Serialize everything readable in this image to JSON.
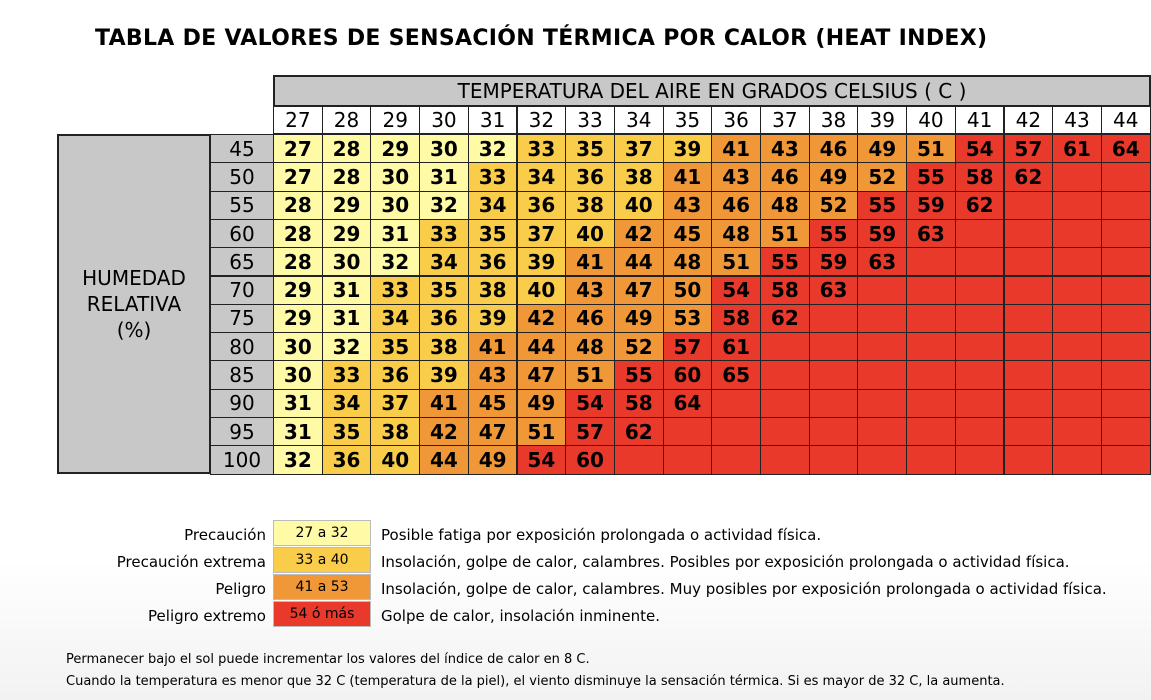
{
  "chart_data": {
    "type": "heatmap",
    "title": "TABLA DE VALORES DE SENSACIÓN TÉRMICA POR CALOR (HEAT INDEX)",
    "xlabel": "TEMPERATURA DEL AIRE EN GRADOS CELSIUS ( C )",
    "ylabel": [
      "HUMEDAD",
      "RELATIVA",
      "(%)"
    ],
    "x": [
      "27",
      "28",
      "29",
      "30",
      "31",
      "32",
      "33",
      "34",
      "35",
      "36",
      "37",
      "38",
      "39",
      "40",
      "41",
      "42",
      "43",
      "44"
    ],
    "y": [
      "45",
      "50",
      "55",
      "60",
      "65",
      "70",
      "75",
      "80",
      "85",
      "90",
      "95",
      "100"
    ],
    "values": [
      [
        27,
        28,
        29,
        30,
        32,
        33,
        35,
        37,
        39,
        41,
        43,
        46,
        49,
        51,
        54,
        57,
        61,
        64
      ],
      [
        27,
        28,
        30,
        31,
        33,
        34,
        36,
        38,
        41,
        43,
        46,
        49,
        52,
        55,
        58,
        62,
        null,
        null
      ],
      [
        28,
        29,
        30,
        32,
        34,
        36,
        38,
        40,
        43,
        46,
        48,
        52,
        55,
        59,
        62,
        null,
        null,
        null
      ],
      [
        28,
        29,
        31,
        33,
        35,
        37,
        40,
        42,
        45,
        48,
        51,
        55,
        59,
        63,
        null,
        null,
        null,
        null
      ],
      [
        28,
        30,
        32,
        34,
        36,
        39,
        41,
        44,
        48,
        51,
        55,
        59,
        63,
        null,
        null,
        null,
        null,
        null
      ],
      [
        29,
        31,
        33,
        35,
        38,
        40,
        43,
        47,
        50,
        54,
        58,
        63,
        null,
        null,
        null,
        null,
        null,
        null
      ],
      [
        29,
        31,
        34,
        36,
        39,
        42,
        46,
        49,
        53,
        58,
        62,
        null,
        null,
        null,
        null,
        null,
        null,
        null
      ],
      [
        30,
        32,
        35,
        38,
        41,
        44,
        48,
        52,
        57,
        61,
        null,
        null,
        null,
        null,
        null,
        null,
        null,
        null
      ],
      [
        30,
        33,
        36,
        39,
        43,
        47,
        51,
        55,
        60,
        65,
        null,
        null,
        null,
        null,
        null,
        null,
        null,
        null
      ],
      [
        31,
        34,
        37,
        41,
        45,
        49,
        54,
        58,
        64,
        null,
        null,
        null,
        null,
        null,
        null,
        null,
        null,
        null
      ],
      [
        31,
        35,
        38,
        42,
        47,
        51,
        57,
        62,
        null,
        null,
        null,
        null,
        null,
        null,
        null,
        null,
        null,
        null
      ],
      [
        32,
        36,
        40,
        44,
        49,
        54,
        60,
        null,
        null,
        null,
        null,
        null,
        null,
        null,
        null,
        null,
        null,
        null
      ]
    ],
    "categories_legend": [
      {
        "name": "Precaución",
        "range": "27 a 32",
        "min": 27,
        "max": 32,
        "color": "#fffaa6",
        "description": "Posible fatiga por exposición prolongada o actividad física."
      },
      {
        "name": "Precaución extrema",
        "range": "33 a 40",
        "min": 33,
        "max": 40,
        "color": "#f9cd4a",
        "description": "Insolación, golpe de calor, calambres. Posibles por exposición prolongada o actividad física."
      },
      {
        "name": "Peligro",
        "range": "41 a 53",
        "min": 41,
        "max": 53,
        "color": "#f09838",
        "description": "Insolación, golpe de calor, calambres. Muy posibles por exposición prolongada o actividad física."
      },
      {
        "name": "Peligro extremo",
        "range": "54 ó más",
        "min": 54,
        "max": 999,
        "color": "#e8392a",
        "description": "Golpe de calor, insolación inminente."
      }
    ],
    "notes": [
      "Permanecer bajo el sol puede incrementar los valores del índice de calor en 8 C.",
      "Cuando la temperatura es menor que 32 C (temperatura de la piel), el viento disminuye la sensación térmica. Si es mayor de 32 C, la aumenta."
    ]
  }
}
